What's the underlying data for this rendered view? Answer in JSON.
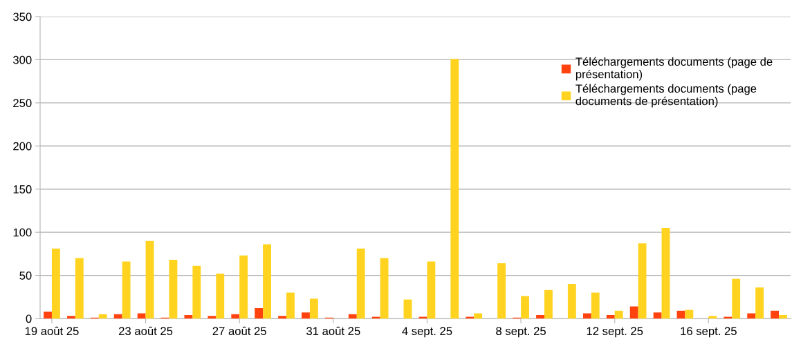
{
  "chart_data": {
    "type": "bar",
    "categories": [
      "19 août 25",
      null,
      null,
      null,
      "23 août 25",
      null,
      null,
      null,
      "27 août 25",
      null,
      null,
      null,
      "31 août 25",
      null,
      null,
      null,
      "4 sept. 25",
      null,
      null,
      null,
      "8 sept. 25",
      null,
      null,
      null,
      "12 sept. 25",
      null,
      null,
      null,
      "16 sept. 25",
      null,
      null,
      null
    ],
    "series": [
      {
        "name": "Téléchargements documents (page de présentation)",
        "color": "#ff420e",
        "values": [
          8,
          3,
          1,
          5,
          6,
          1,
          4,
          3,
          5,
          12,
          3,
          7,
          1,
          5,
          2,
          0,
          2,
          0,
          2,
          0,
          1,
          4,
          0,
          6,
          4,
          14,
          7,
          9,
          0,
          2,
          6,
          9
        ]
      },
      {
        "name": "Téléchargements documents (page documents de présentation)",
        "color": "#ffd320",
        "values": [
          81,
          70,
          5,
          66,
          90,
          68,
          61,
          52,
          73,
          86,
          30,
          23,
          0,
          81,
          70,
          22,
          66,
          301,
          6,
          64,
          26,
          33,
          40,
          30,
          9,
          87,
          105,
          10,
          3,
          46,
          36,
          4
        ]
      }
    ],
    "ylim": [
      0,
      350
    ],
    "yticks": [
      0,
      50,
      100,
      150,
      200,
      250,
      300,
      350
    ],
    "grid": "y",
    "legend": "top right"
  }
}
